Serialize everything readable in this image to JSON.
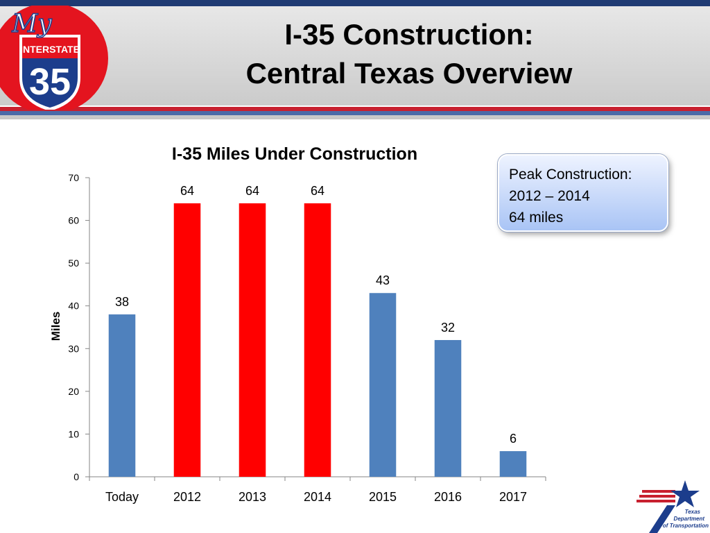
{
  "header": {
    "title_line1": "I-35 Construction:",
    "title_line2": "Central Texas Overview"
  },
  "logo": {
    "top_text": "My",
    "mid_text": "INTERSTATE",
    "number": "35"
  },
  "callout": {
    "line1": "Peak Construction:",
    "line2": "2012 – 2014",
    "line3": "64 miles"
  },
  "txdot_logo": {
    "line1": "Texas",
    "line2": "Department",
    "line3": "of Transportation"
  },
  "colors": {
    "bar_blue": "#4f81bd",
    "bar_red": "#ff0000",
    "header_navy": "#1f3b73",
    "header_red": "#c8202f"
  },
  "chart_data": {
    "type": "bar",
    "title": "I-35 Miles Under Construction",
    "xlabel": "",
    "ylabel": "Miles",
    "categories": [
      "Today",
      "2012",
      "2013",
      "2014",
      "2015",
      "2016",
      "2017"
    ],
    "values": [
      38,
      64,
      64,
      64,
      43,
      32,
      6
    ],
    "highlight": [
      false,
      true,
      true,
      true,
      false,
      false,
      false
    ],
    "data_labels": [
      "38",
      "64",
      "64",
      "64",
      "43",
      "32",
      "6"
    ],
    "ylim": [
      0,
      70
    ],
    "yticks": [
      0,
      10,
      20,
      30,
      40,
      50,
      60,
      70
    ],
    "grid": false,
    "legend": "none"
  }
}
